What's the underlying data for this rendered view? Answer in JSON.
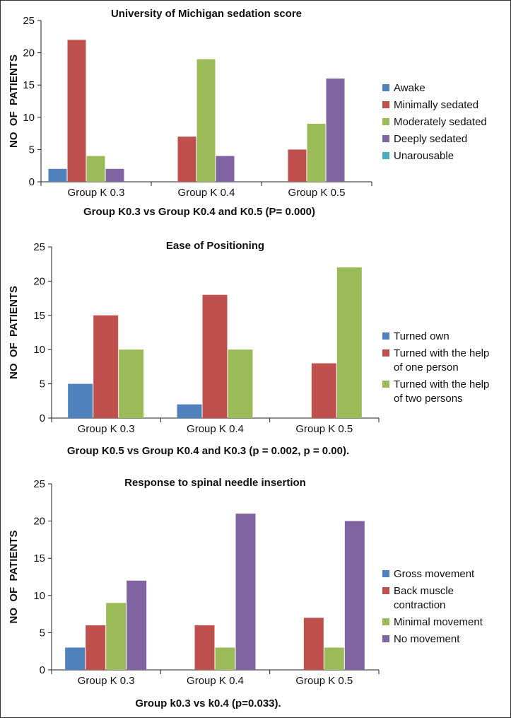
{
  "colors": {
    "blue": "#4f81bd",
    "red": "#c0504d",
    "green": "#9bbb59",
    "purple": "#8064a2",
    "cyan": "#4bacc6"
  },
  "chart_data": [
    {
      "type": "bar",
      "title": "University of Michigan sedation score",
      "caption": "Group K0.3 vs Group K0.4 and K0.5 (P= 0.000)",
      "ylabel": "NO  OF  PATIENTS",
      "ylim": [
        0,
        25
      ],
      "yticks": [
        0,
        5,
        10,
        15,
        20,
        25
      ],
      "legend_position": "right",
      "categories": [
        "Group K 0.3",
        "Group K 0.4",
        "Group K 0.5"
      ],
      "series": [
        {
          "name": "Awake",
          "color": "#4f81bd",
          "values": [
            2,
            0,
            0
          ]
        },
        {
          "name": "Minimally sedated",
          "color": "#c0504d",
          "values": [
            22,
            7,
            5
          ]
        },
        {
          "name": "Moderately sedated",
          "color": "#9bbb59",
          "values": [
            4,
            19,
            9
          ]
        },
        {
          "name": "Deeply sedated",
          "color": "#8064a2",
          "values": [
            2,
            4,
            16
          ]
        },
        {
          "name": "Unarousable",
          "color": "#4bacc6",
          "values": [
            0,
            0,
            0
          ]
        }
      ]
    },
    {
      "type": "bar",
      "title": "Ease of Positioning",
      "caption": "Group K0.5 vs  Group K0.4 and  K0.3 (p = 0.002, p = 0.00).",
      "ylabel": "NO  OF  PATIENTS",
      "ylim": [
        0,
        25
      ],
      "yticks": [
        0,
        5,
        10,
        15,
        20,
        25
      ],
      "legend_position": "right",
      "categories": [
        "Group K 0.3",
        "Group K 0.4",
        "Group K 0.5"
      ],
      "series": [
        {
          "name": "Turned own",
          "color": "#4f81bd",
          "values": [
            5,
            2,
            0
          ]
        },
        {
          "name": "Turned with the help of one person",
          "color": "#c0504d",
          "values": [
            15,
            18,
            8
          ]
        },
        {
          "name": "Turned with the help of two persons",
          "color": "#9bbb59",
          "values": [
            10,
            10,
            22
          ]
        }
      ]
    },
    {
      "type": "bar",
      "title": "Response to spinal needle insertion",
      "caption": "Group k0.3 vs k0.4 (p=0.033).",
      "ylabel": "NO  OF  PATIENTS",
      "ylim": [
        0,
        25
      ],
      "yticks": [
        0,
        5,
        10,
        15,
        20,
        25
      ],
      "legend_position": "right",
      "categories": [
        "Group K 0.3",
        "Group K 0.4",
        "Group K 0.5"
      ],
      "series": [
        {
          "name": "Gross movement",
          "color": "#4f81bd",
          "values": [
            3,
            0,
            0
          ]
        },
        {
          "name": "Back muscle contraction",
          "color": "#c0504d",
          "values": [
            6,
            6,
            7
          ]
        },
        {
          "name": "Minimal movement",
          "color": "#9bbb59",
          "values": [
            9,
            3,
            3
          ]
        },
        {
          "name": "No movement",
          "color": "#8064a2",
          "values": [
            12,
            21,
            20
          ]
        }
      ]
    }
  ]
}
